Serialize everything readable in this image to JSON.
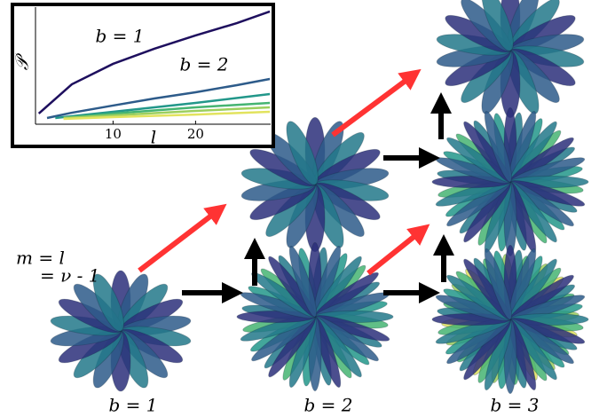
{
  "chart_data": {
    "type": "line",
    "xlabel": "l",
    "ylabel": "𝒫",
    "annotations": [
      "b = 1",
      "b = 2"
    ],
    "xlim": [
      0.6,
      29.1
    ],
    "ylim": [
      0,
      1
    ],
    "xticks": [
      10,
      20
    ],
    "series": [
      {
        "color": "#1e0f5e",
        "x": [
          1,
          5,
          10,
          15,
          20,
          25,
          29
        ],
        "values": [
          0.089,
          0.333,
          0.504,
          0.63,
          0.741,
          0.844,
          0.941
        ]
      },
      {
        "color": "#2d5b8a",
        "x": [
          2,
          5,
          10,
          15,
          20,
          25,
          29
        ],
        "values": [
          0.052,
          0.096,
          0.156,
          0.215,
          0.267,
          0.326,
          0.378
        ]
      },
      {
        "color": "#22978a",
        "x": [
          3,
          10,
          20,
          29
        ],
        "values": [
          0.052,
          0.104,
          0.178,
          0.252
        ]
      },
      {
        "color": "#45b472",
        "x": [
          4,
          10,
          20,
          29
        ],
        "values": [
          0.052,
          0.089,
          0.141,
          0.178
        ]
      },
      {
        "color": "#9ccf5e",
        "x": [
          4,
          10,
          20,
          29
        ],
        "values": [
          0.052,
          0.074,
          0.111,
          0.141
        ]
      },
      {
        "color": "#e2e35e",
        "x": [
          4,
          10,
          20,
          29
        ],
        "values": [
          0.044,
          0.059,
          0.081,
          0.104
        ]
      }
    ]
  },
  "figure": {
    "relation": [
      "m = l",
      "= ν - 1"
    ],
    "columns": [
      "b = 1",
      "b = 2",
      "b = 3"
    ]
  }
}
